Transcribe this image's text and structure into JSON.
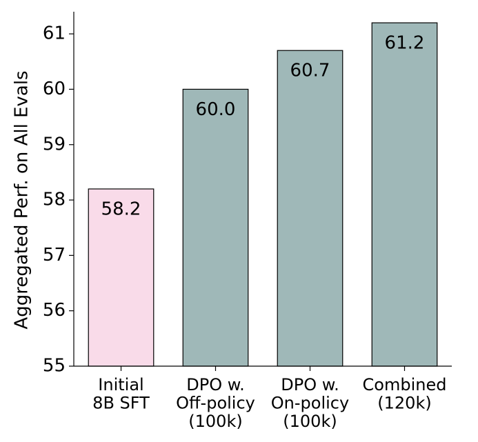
{
  "chart_data": {
    "type": "bar",
    "y_label": "Aggregated Perf. on All Evals",
    "categories": [
      "Initial\n8B SFT",
      "DPO w.\nOff-policy\n(100k)",
      "DPO w.\nOn-policy\n(100k)",
      "Combined\n(120k)"
    ],
    "values": [
      58.2,
      60.0,
      60.7,
      61.2
    ],
    "value_labels": [
      "58.2",
      "60.0",
      "60.7",
      "61.2"
    ],
    "colors": [
      "#f9dbe9",
      "#9fb8b8",
      "#9fb8b8",
      "#9fb8b8"
    ],
    "ylim": [
      55,
      61.4
    ],
    "yticks": [
      55,
      56,
      57,
      58,
      59,
      60,
      61
    ]
  }
}
